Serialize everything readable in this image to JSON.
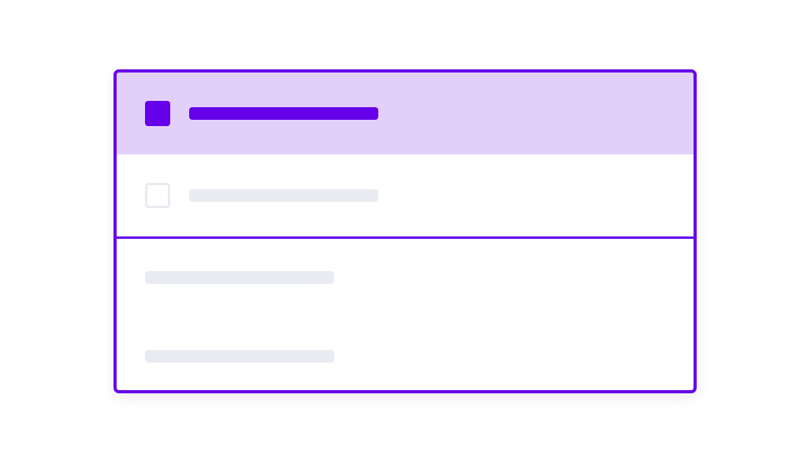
{
  "colors": {
    "accent": "#6600ea",
    "selected_row_bg": "#e3d0fa",
    "placeholder": "#e8ebef"
  },
  "list": {
    "options": [
      {
        "checked": true,
        "selected": true
      },
      {
        "checked": false,
        "selected": false
      }
    ]
  },
  "lower_section": {
    "placeholder_lines": 2
  }
}
